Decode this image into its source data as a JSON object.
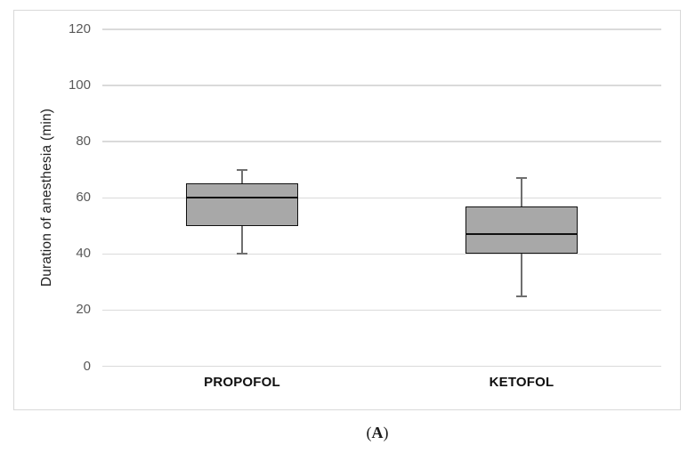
{
  "figure": {
    "caption_open": "(",
    "caption_letter": "A",
    "caption_close": ")"
  },
  "chart_data": {
    "type": "box",
    "title": "",
    "xlabel": "",
    "ylabel": "Duration of anesthesia (min)",
    "ylim": [
      0,
      120
    ],
    "yticks": [
      0,
      20,
      40,
      60,
      80,
      100,
      120
    ],
    "grid": true,
    "legend": false,
    "categories": [
      "PROPOFOL",
      "KETOFOL"
    ],
    "series": [
      {
        "name": "PROPOFOL",
        "min": 40,
        "q1": 50,
        "median": 60,
        "q3": 65,
        "max": 70
      },
      {
        "name": "KETOFOL",
        "min": 25,
        "q1": 40,
        "median": 47,
        "q3": 57,
        "max": 67
      }
    ],
    "colors": {
      "background": "#ffffff",
      "frame_border": "#d9d9d9",
      "gridline": "#dadada",
      "tick_label": "#595959",
      "axis_title": "#1f1f1f",
      "category_label": "#0f0f0f",
      "box_fill": "#a8a8a8",
      "box_border": "#101010",
      "median": "#101010",
      "whisker": "#6f6f6f",
      "caption": "#1a1a1a"
    }
  }
}
